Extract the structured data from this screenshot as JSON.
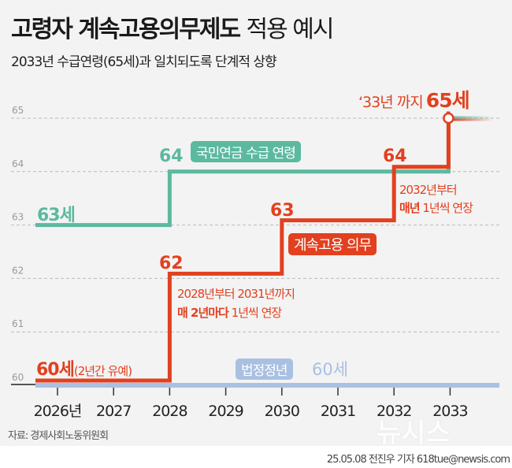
{
  "title_bold": "고령자 계속고용의무제도",
  "title_light": "적용 예시",
  "subtitle": "2033년 수급연령(65세)과 일치되도록 단계적 상향",
  "colors": {
    "pension": "#5bb9a0",
    "employment": "#e2401f",
    "legal": "#a9c0e2",
    "background": "#f3f3f3"
  },
  "chart_data": {
    "type": "line",
    "step": true,
    "categories": [
      "2026년",
      "2027",
      "2028",
      "2029",
      "2030",
      "2031",
      "2032",
      "2033"
    ],
    "x": [
      2026,
      2027,
      2028,
      2029,
      2030,
      2031,
      2032,
      2033
    ],
    "y_ticks": [
      "60",
      "61",
      "62",
      "63",
      "64",
      "65"
    ],
    "ylim": [
      60,
      65
    ],
    "grid": true,
    "series": [
      {
        "name": "국민연금 수급 연령",
        "values": [
          63,
          63,
          64,
          64,
          64,
          64,
          64,
          65
        ]
      },
      {
        "name": "계속고용 의무",
        "values": [
          60,
          60,
          62,
          62,
          63,
          63,
          64,
          65
        ]
      },
      {
        "name": "법정정년",
        "values": [
          60,
          60,
          60,
          60,
          60,
          60,
          60,
          60
        ]
      }
    ],
    "annotations": {
      "pension_start": "63세",
      "pension_64": "64",
      "emp_start_bold": "60세",
      "emp_start_note": "(2년간 유예)",
      "emp_62": "62",
      "emp_63": "63",
      "emp_64": "64",
      "note1_line1": "2028년부터 2031년까지",
      "note1_bold": "매 2년마다",
      "note1_rest": "1년씩 연장",
      "note2_line1": "2032년부터",
      "note2_bold": "매년",
      "note2_rest": "1년씩 연장",
      "final_prefix": "‘33년 까지",
      "final_value": "65세",
      "legal_value": "60세"
    }
  },
  "source": "자료: 경제사회노동위원회",
  "credit": "25.05.08 전진우 기자 618tue@newsis.com",
  "watermark": "뉴시스"
}
